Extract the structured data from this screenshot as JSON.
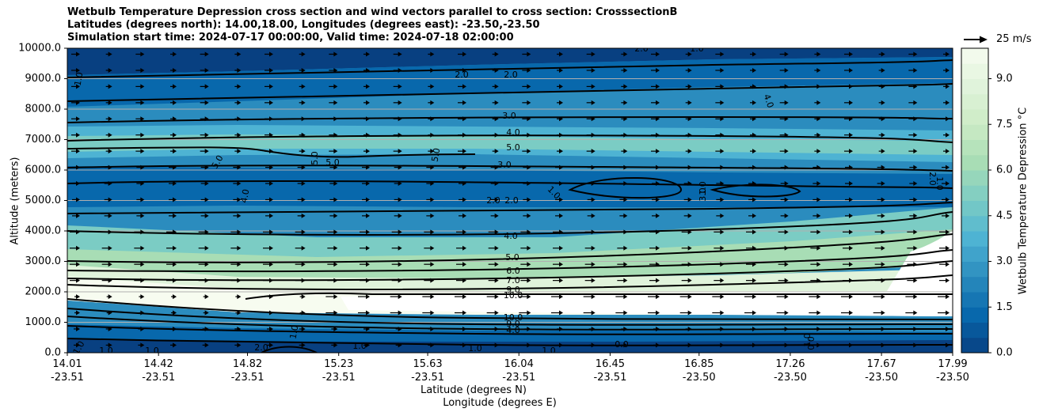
{
  "title": {
    "line1": "Wetbulb Temperature Depression cross section and wind vectors parallel to cross section: CrosssectionB",
    "line2": "Latitudes (degrees north): 14.00,18.00, Longitudes (degrees east): -23.50,-23.50",
    "line3": "Simulation start time: 2024-07-17 00:00:00, Valid time: 2024-07-18 02:00:00"
  },
  "chart_data": {
    "type": "contour",
    "ylabel": "Altitude (meters)",
    "xlabel_lat": "Latitude (degrees N)",
    "xlabel_lon": "Longitude (degrees E)",
    "colorbar_label": "Wetbulb Temperature Depression °C",
    "quiver_key": "25 m/s",
    "ylim": [
      0,
      10000
    ],
    "yticks": [
      "0.0",
      "1000.0",
      "2000.0",
      "3000.0",
      "4000.0",
      "5000.0",
      "6000.0",
      "7000.0",
      "8000.0",
      "9000.0",
      "10000.0"
    ],
    "xticks_lat": [
      "14.01",
      "14.42",
      "14.82",
      "15.23",
      "15.63",
      "16.04",
      "16.45",
      "16.85",
      "17.26",
      "17.67",
      "17.99"
    ],
    "xticks_lon": [
      "-23.51",
      "-23.51",
      "-23.51",
      "-23.51",
      "-23.51",
      "-23.51",
      "-23.51",
      "-23.50",
      "-23.50",
      "-23.50",
      "-23.50"
    ],
    "colorbar_range": [
      0,
      10
    ],
    "colorbar_ticks": [
      "0.0",
      "1.5",
      "3.0",
      "4.5",
      "6.0",
      "7.5",
      "9.0"
    ],
    "colorbar_colors": [
      "#084081",
      "#0868ac",
      "#2b8cbe",
      "#4eb3d3",
      "#7bccc4",
      "#a8ddb5",
      "#ccebc5",
      "#e0f3db",
      "#f7fcf0"
    ],
    "contour_labels": [
      "1.0",
      "2.0",
      "2.0",
      "2.0",
      "1.0",
      "4.0",
      "3.0",
      "4.0",
      "5.0",
      "5.0",
      "5.0",
      "5.0",
      "5.0",
      "3.0",
      "4.0",
      "1.0",
      "2.0",
      "2.0",
      "2.0",
      "3.0",
      "4.0",
      "5.0",
      "6.0",
      "7.0",
      "9.0",
      "10.0",
      "1.0",
      "1.0",
      "1.0",
      "1.0",
      "1.0",
      "2.0",
      "1.0",
      "1.0",
      "1.0",
      "1.0",
      "0.0",
      "0.0",
      "10.0",
      "9.0",
      "4.0",
      "1.0"
    ],
    "grid": "horizontal"
  }
}
